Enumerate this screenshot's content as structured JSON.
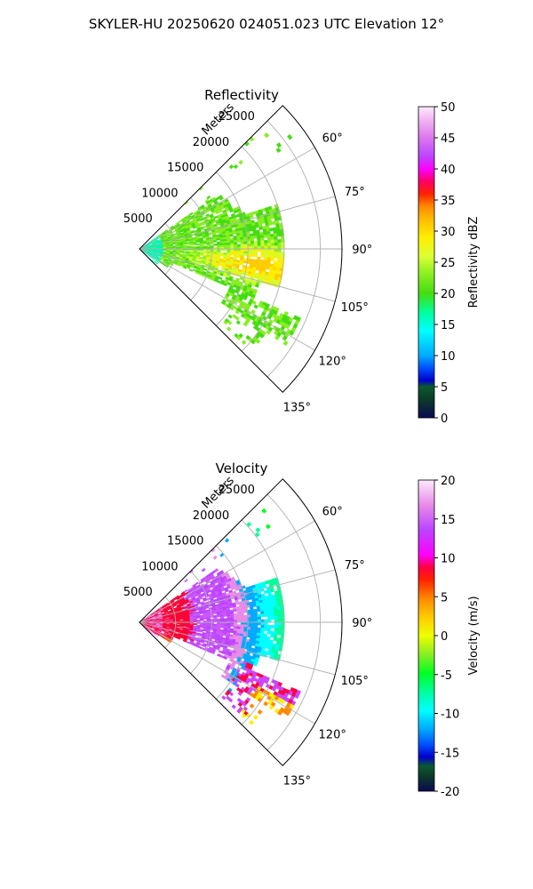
{
  "figure": {
    "suptitle": "SKYLER-HU  20250620  024051.023 UTC Elevation 12°"
  },
  "colors": {
    "grid": "#b0b0b0",
    "axis": "#000000"
  },
  "chart_data": [
    {
      "type": "heatmap",
      "projection": "polar-sector",
      "title": "Reflectivity",
      "radial_label": "Meters",
      "r_ticks": [
        "5000",
        "10000",
        "15000",
        "20000",
        "25000"
      ],
      "r_max": 28000,
      "theta_ticks": [
        "60°",
        "75°",
        "90°",
        "105°",
        "120°",
        "135°"
      ],
      "theta_range_deg": [
        45,
        135
      ],
      "colorbar": {
        "label": "Reflectivity dBZ",
        "ticks": [
          "0",
          "5",
          "10",
          "15",
          "20",
          "25",
          "30",
          "35",
          "40",
          "45",
          "50"
        ],
        "range": [
          0,
          50
        ]
      },
      "field_summary": "Widespread echoes 10-25 dBZ, core ~25-30 dBZ near 90-100° at 12-16 km"
    },
    {
      "type": "heatmap",
      "projection": "polar-sector",
      "title": "Velocity",
      "radial_label": "Meters",
      "r_ticks": [
        "5000",
        "10000",
        "15000",
        "20000",
        "25000"
      ],
      "r_max": 28000,
      "theta_ticks": [
        "60°",
        "75°",
        "90°",
        "105°",
        "120°",
        "135°"
      ],
      "theta_range_deg": [
        45,
        135
      ],
      "colorbar": {
        "label": "Velocity (m/s)",
        "ticks": [
          "-20",
          "-15",
          "-10",
          "-5",
          "0",
          "5",
          "10",
          "15",
          "20"
        ],
        "range": [
          -20,
          20
        ]
      },
      "field_summary": "Outbound 10-20 m/s near radar, inbound -5 to -15 m/s beyond ~14 km"
    }
  ]
}
